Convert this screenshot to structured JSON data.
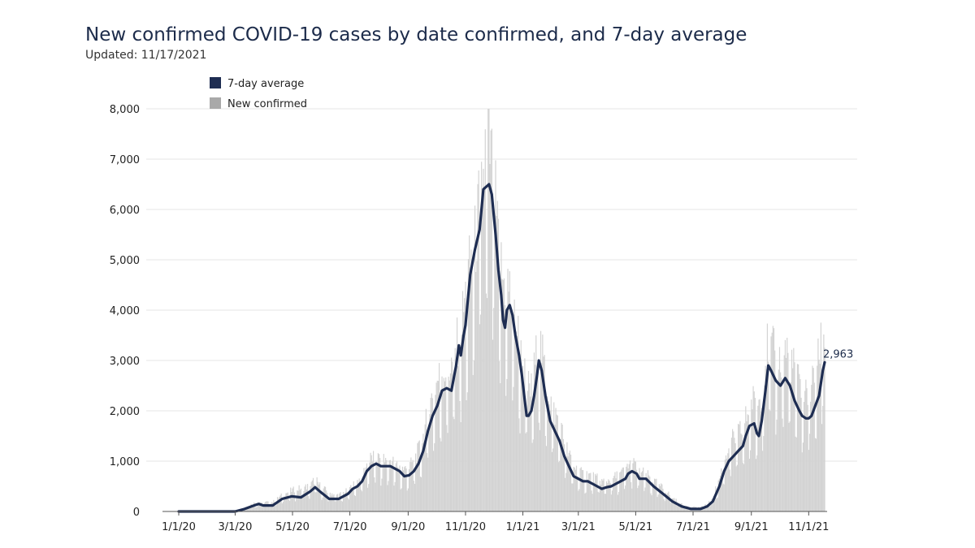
{
  "header": {
    "title": "New confirmed COVID-19 cases by date confirmed, and 7-day average",
    "subtitle": "Updated: 11/17/2021"
  },
  "colors": {
    "line": "#1e2d52",
    "bars": "#d3d3d3",
    "grid": "#e6e6e6",
    "legend_bar": "#a9a9a9"
  },
  "chart_data": {
    "type": "bar",
    "title": "New confirmed COVID-19 cases by date confirmed, and 7-day average",
    "subtitle": "Updated: 11/17/2021",
    "xlabel": "",
    "ylabel": "",
    "ylim": [
      0,
      8000
    ],
    "yticks": [
      0,
      1000,
      2000,
      3000,
      4000,
      5000,
      6000,
      7000,
      8000
    ],
    "ytick_labels": [
      "0",
      "1,000",
      "2,000",
      "3,000",
      "4,000",
      "5,000",
      "6,000",
      "7,000",
      "8,000"
    ],
    "xlim_days": [
      0,
      687
    ],
    "xticks": [
      {
        "label": "1/1/20",
        "day": 0
      },
      {
        "label": "3/1/20",
        "day": 60
      },
      {
        "label": "5/1/20",
        "day": 121
      },
      {
        "label": "7/1/20",
        "day": 182
      },
      {
        "label": "9/1/20",
        "day": 244
      },
      {
        "label": "11/1/20",
        "day": 305
      },
      {
        "label": "1/1/21",
        "day": 366
      },
      {
        "label": "3/1/21",
        "day": 425
      },
      {
        "label": "5/1/21",
        "day": 486
      },
      {
        "label": "7/1/21",
        "day": 547
      },
      {
        "label": "9/1/21",
        "day": 609
      },
      {
        "label": "11/1/21",
        "day": 670
      }
    ],
    "legend": [
      "7-day average",
      "New confirmed"
    ],
    "legend_position": "top-left",
    "series": [
      {
        "name": "7-day average",
        "type": "line",
        "points": [
          [
            0,
            0
          ],
          [
            60,
            0
          ],
          [
            70,
            50
          ],
          [
            80,
            120
          ],
          [
            85,
            150
          ],
          [
            90,
            120
          ],
          [
            100,
            120
          ],
          [
            110,
            250
          ],
          [
            120,
            300
          ],
          [
            130,
            280
          ],
          [
            140,
            400
          ],
          [
            145,
            480
          ],
          [
            150,
            400
          ],
          [
            160,
            250
          ],
          [
            170,
            250
          ],
          [
            180,
            350
          ],
          [
            185,
            450
          ],
          [
            190,
            500
          ],
          [
            195,
            600
          ],
          [
            200,
            800
          ],
          [
            205,
            900
          ],
          [
            210,
            950
          ],
          [
            215,
            900
          ],
          [
            225,
            900
          ],
          [
            235,
            800
          ],
          [
            240,
            700
          ],
          [
            245,
            720
          ],
          [
            250,
            800
          ],
          [
            255,
            950
          ],
          [
            260,
            1200
          ],
          [
            265,
            1600
          ],
          [
            270,
            1900
          ],
          [
            275,
            2100
          ],
          [
            280,
            2400
          ],
          [
            285,
            2450
          ],
          [
            290,
            2400
          ],
          [
            292,
            2600
          ],
          [
            295,
            2900
          ],
          [
            298,
            3300
          ],
          [
            300,
            3100
          ],
          [
            303,
            3500
          ],
          [
            305,
            3700
          ],
          [
            310,
            4700
          ],
          [
            315,
            5200
          ],
          [
            320,
            5600
          ],
          [
            324,
            6400
          ],
          [
            327,
            6450
          ],
          [
            330,
            6500
          ],
          [
            333,
            6300
          ],
          [
            337,
            5500
          ],
          [
            340,
            4800
          ],
          [
            343,
            4300
          ],
          [
            345,
            3800
          ],
          [
            347,
            3650
          ],
          [
            349,
            4000
          ],
          [
            352,
            4100
          ],
          [
            355,
            3900
          ],
          [
            358,
            3500
          ],
          [
            362,
            3100
          ],
          [
            365,
            2700
          ],
          [
            368,
            2200
          ],
          [
            370,
            1900
          ],
          [
            372,
            1900
          ],
          [
            375,
            2000
          ],
          [
            378,
            2300
          ],
          [
            381,
            2700
          ],
          [
            383,
            3000
          ],
          [
            386,
            2800
          ],
          [
            390,
            2300
          ],
          [
            395,
            1800
          ],
          [
            400,
            1600
          ],
          [
            405,
            1400
          ],
          [
            410,
            1100
          ],
          [
            415,
            900
          ],
          [
            420,
            700
          ],
          [
            425,
            650
          ],
          [
            430,
            600
          ],
          [
            435,
            600
          ],
          [
            440,
            550
          ],
          [
            445,
            500
          ],
          [
            450,
            450
          ],
          [
            455,
            480
          ],
          [
            460,
            500
          ],
          [
            465,
            550
          ],
          [
            470,
            600
          ],
          [
            475,
            650
          ],
          [
            478,
            750
          ],
          [
            482,
            800
          ],
          [
            487,
            750
          ],
          [
            490,
            650
          ],
          [
            497,
            650
          ],
          [
            505,
            500
          ],
          [
            515,
            350
          ],
          [
            525,
            200
          ],
          [
            535,
            100
          ],
          [
            545,
            50
          ],
          [
            555,
            50
          ],
          [
            562,
            100
          ],
          [
            568,
            200
          ],
          [
            575,
            500
          ],
          [
            580,
            800
          ],
          [
            585,
            1000
          ],
          [
            590,
            1100
          ],
          [
            595,
            1200
          ],
          [
            600,
            1300
          ],
          [
            603,
            1500
          ],
          [
            607,
            1700
          ],
          [
            612,
            1750
          ],
          [
            615,
            1550
          ],
          [
            617,
            1500
          ],
          [
            620,
            1800
          ],
          [
            624,
            2400
          ],
          [
            627,
            2900
          ],
          [
            630,
            2800
          ],
          [
            635,
            2600
          ],
          [
            640,
            2500
          ],
          [
            645,
            2650
          ],
          [
            650,
            2500
          ],
          [
            655,
            2200
          ],
          [
            660,
            2000
          ],
          [
            663,
            1900
          ],
          [
            667,
            1850
          ],
          [
            670,
            1850
          ],
          [
            673,
            1900
          ],
          [
            677,
            2100
          ],
          [
            681,
            2300
          ],
          [
            685,
            2800
          ],
          [
            687,
            2963
          ]
        ]
      },
      {
        "name": "New confirmed",
        "type": "bar",
        "points": [
          [
            0,
            0
          ],
          [
            60,
            0
          ],
          [
            70,
            80
          ],
          [
            80,
            180
          ],
          [
            90,
            200
          ],
          [
            100,
            200
          ],
          [
            110,
            350
          ],
          [
            120,
            450
          ],
          [
            130,
            500
          ],
          [
            140,
            550
          ],
          [
            145,
            700
          ],
          [
            150,
            550
          ],
          [
            160,
            400
          ],
          [
            170,
            350
          ],
          [
            180,
            450
          ],
          [
            190,
            650
          ],
          [
            195,
            750
          ],
          [
            200,
            1000
          ],
          [
            205,
            1150
          ],
          [
            210,
            1150
          ],
          [
            215,
            1100
          ],
          [
            225,
            1100
          ],
          [
            235,
            950
          ],
          [
            240,
            900
          ],
          [
            245,
            950
          ],
          [
            250,
            1100
          ],
          [
            255,
            1300
          ],
          [
            260,
            1600
          ],
          [
            265,
            2100
          ],
          [
            270,
            2500
          ],
          [
            275,
            2800
          ],
          [
            280,
            3000
          ],
          [
            285,
            3000
          ],
          [
            290,
            3100
          ],
          [
            295,
            3500
          ],
          [
            300,
            3900
          ],
          [
            305,
            4600
          ],
          [
            310,
            5300
          ],
          [
            315,
            5700
          ],
          [
            320,
            6600
          ],
          [
            324,
            7100
          ],
          [
            327,
            7900
          ],
          [
            330,
            7900
          ],
          [
            333,
            7300
          ],
          [
            337,
            6500
          ],
          [
            340,
            5600
          ],
          [
            345,
            4900
          ],
          [
            350,
            4900
          ],
          [
            355,
            4400
          ],
          [
            360,
            3900
          ],
          [
            365,
            3200
          ],
          [
            370,
            2700
          ],
          [
            375,
            2600
          ],
          [
            380,
            3300
          ],
          [
            383,
            3700
          ],
          [
            386,
            3400
          ],
          [
            390,
            2900
          ],
          [
            395,
            2400
          ],
          [
            400,
            2100
          ],
          [
            405,
            1900
          ],
          [
            410,
            1500
          ],
          [
            415,
            1200
          ],
          [
            420,
            1000
          ],
          [
            425,
            850
          ],
          [
            430,
            800
          ],
          [
            435,
            800
          ],
          [
            440,
            750
          ],
          [
            445,
            700
          ],
          [
            450,
            650
          ],
          [
            455,
            650
          ],
          [
            460,
            700
          ],
          [
            465,
            750
          ],
          [
            470,
            800
          ],
          [
            475,
            900
          ],
          [
            478,
            1000
          ],
          [
            482,
            1050
          ],
          [
            487,
            950
          ],
          [
            490,
            850
          ],
          [
            497,
            800
          ],
          [
            505,
            650
          ],
          [
            515,
            500
          ],
          [
            525,
            300
          ],
          [
            535,
            150
          ],
          [
            545,
            100
          ],
          [
            555,
            100
          ],
          [
            562,
            150
          ],
          [
            568,
            300
          ],
          [
            575,
            700
          ],
          [
            580,
            1100
          ],
          [
            585,
            1400
          ],
          [
            590,
            1550
          ],
          [
            595,
            1650
          ],
          [
            600,
            1800
          ],
          [
            605,
            2100
          ],
          [
            610,
            2400
          ],
          [
            615,
            2200
          ],
          [
            620,
            2600
          ],
          [
            624,
            3300
          ],
          [
            627,
            3600
          ],
          [
            630,
            3500
          ],
          [
            635,
            3300
          ],
          [
            640,
            3200
          ],
          [
            645,
            3500
          ],
          [
            650,
            3300
          ],
          [
            655,
            3000
          ],
          [
            660,
            2700
          ],
          [
            665,
            2500
          ],
          [
            670,
            2600
          ],
          [
            675,
            2800
          ],
          [
            680,
            3200
          ],
          [
            683,
            3600
          ],
          [
            685,
            4050
          ],
          [
            687,
            3700
          ]
        ]
      }
    ],
    "annotations": [
      {
        "text": "2,963",
        "x_day": 687,
        "y": 2963
      }
    ]
  }
}
